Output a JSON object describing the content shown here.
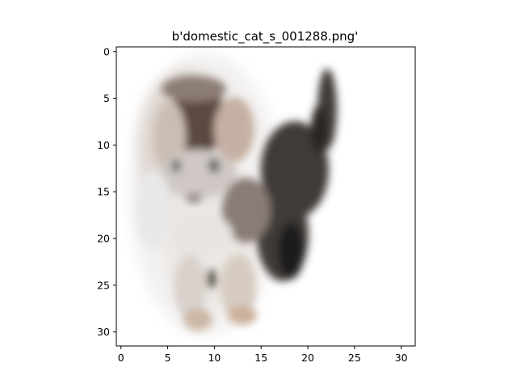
{
  "figure": {
    "title": "b'domestic_cat_s_001288.png'"
  },
  "image": {
    "description_icon": "cat-image",
    "grid_size": [
      32,
      32
    ],
    "colors": {
      "background": "#ffffff",
      "cat_light": "#e6e1dc",
      "cat_mid": "#a7978d",
      "cat_dark": "#3f3a37",
      "cat_black": "#1f1c1b",
      "blur_halo": "#f1efee"
    }
  },
  "axes": {
    "x_ticks": [
      "0",
      "5",
      "10",
      "15",
      "20",
      "25",
      "30"
    ],
    "y_ticks": [
      "0",
      "5",
      "10",
      "15",
      "20",
      "25",
      "30"
    ],
    "x_tick_values": [
      0,
      5,
      10,
      15,
      20,
      25,
      30
    ],
    "y_tick_values": [
      0,
      5,
      10,
      15,
      20,
      25,
      30
    ],
    "xlim": [
      -0.5,
      31.5
    ],
    "ylim": [
      31.5,
      -0.5
    ]
  }
}
